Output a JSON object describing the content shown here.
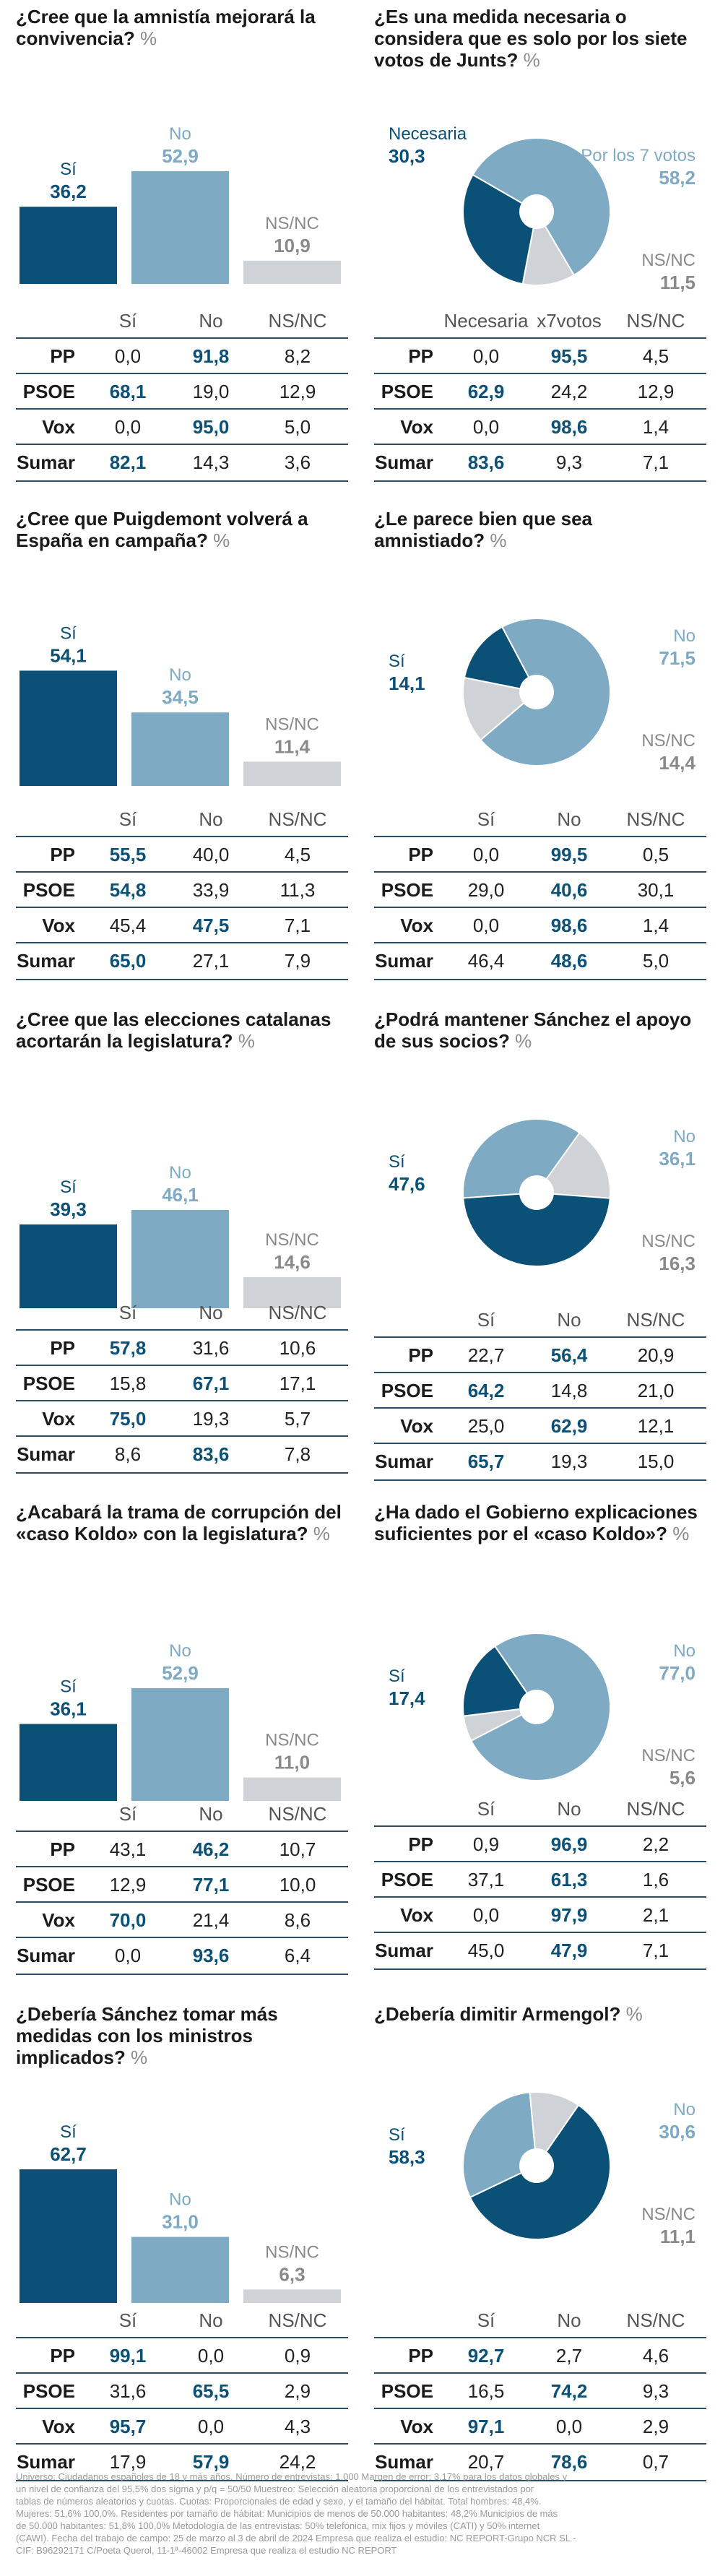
{
  "colors": {
    "dark": "#0b5177",
    "light": "#7eaac4",
    "grey": "#cfd2d7",
    "greyText": "#8a8a8a"
  },
  "sections": [
    {
      "type": "bar",
      "title": "¿Cree que la amnistía mejorará la convivencia?",
      "pct": "%",
      "chart_items": [
        {
          "label": "Sí",
          "value": 36.2,
          "value_text": "36,2"
        },
        {
          "label": "No",
          "value": 52.9,
          "value_text": "52,9"
        },
        {
          "label": "NS/NC",
          "value": 10.9,
          "value_text": "10,9"
        }
      ],
      "table": {
        "headers": [
          "Sí",
          "No",
          "NS/NC"
        ],
        "rows": [
          {
            "party": "PP",
            "cells": [
              "0,0",
              "91,8",
              "8,2"
            ],
            "hi": 1
          },
          {
            "party": "PSOE",
            "cells": [
              "68,1",
              "19,0",
              "12,9"
            ],
            "hi": 0
          },
          {
            "party": "Vox",
            "cells": [
              "0,0",
              "95,0",
              "5,0"
            ],
            "hi": 1
          },
          {
            "party": "Sumar",
            "cells": [
              "82,1",
              "14,3",
              "3,6"
            ],
            "hi": 0
          }
        ]
      }
    },
    {
      "type": "pie",
      "title": "¿Es una medida necesaria o considera que es solo por los siete votos de Junts?",
      "pct": "%",
      "chart_items": [
        {
          "label": "Necesaria",
          "value": 30.3,
          "value_text": "30,3"
        },
        {
          "label": "Por los 7 votos",
          "value": 58.2,
          "value_text": "58,2"
        },
        {
          "label": "NS/NC",
          "value": 11.5,
          "value_text": "11,5"
        }
      ],
      "table": {
        "headers": [
          "Necesaria",
          "x7votos",
          "NS/NC"
        ],
        "rows": [
          {
            "party": "PP",
            "cells": [
              "0,0",
              "95,5",
              "4,5"
            ],
            "hi": 1
          },
          {
            "party": "PSOE",
            "cells": [
              "62,9",
              "24,2",
              "12,9"
            ],
            "hi": 0
          },
          {
            "party": "Vox",
            "cells": [
              "0,0",
              "98,6",
              "1,4"
            ],
            "hi": 1
          },
          {
            "party": "Sumar",
            "cells": [
              "83,6",
              "9,3",
              "7,1"
            ],
            "hi": 0
          }
        ]
      }
    },
    {
      "type": "bar",
      "title": "¿Cree que Puigdemont volverá a España en campaña?",
      "pct": "%",
      "chart_items": [
        {
          "label": "Sí",
          "value": 54.1,
          "value_text": "54,1"
        },
        {
          "label": "No",
          "value": 34.5,
          "value_text": "34,5"
        },
        {
          "label": "NS/NC",
          "value": 11.4,
          "value_text": "11,4"
        }
      ],
      "table": {
        "headers": [
          "Sí",
          "No",
          "NS/NC"
        ],
        "rows": [
          {
            "party": "PP",
            "cells": [
              "55,5",
              "40,0",
              "4,5"
            ],
            "hi": 0
          },
          {
            "party": "PSOE",
            "cells": [
              "54,8",
              "33,9",
              "11,3"
            ],
            "hi": 0
          },
          {
            "party": "Vox",
            "cells": [
              "45,4",
              "47,5",
              "7,1"
            ],
            "hi": 1
          },
          {
            "party": "Sumar",
            "cells": [
              "65,0",
              "27,1",
              "7,9"
            ],
            "hi": 0
          }
        ]
      }
    },
    {
      "type": "pie",
      "title": "¿Le parece bien que sea amnistiado?",
      "pct": "%",
      "chart_items": [
        {
          "label": "Sí",
          "value": 14.1,
          "value_text": "14,1"
        },
        {
          "label": "No",
          "value": 71.5,
          "value_text": "71,5"
        },
        {
          "label": "NS/NC",
          "value": 14.4,
          "value_text": "14,4"
        }
      ],
      "table": {
        "headers": [
          "Sí",
          "No",
          "NS/NC"
        ],
        "rows": [
          {
            "party": "PP",
            "cells": [
              "0,0",
              "99,5",
              "0,5"
            ],
            "hi": 1
          },
          {
            "party": "PSOE",
            "cells": [
              "29,0",
              "40,6",
              "30,1"
            ],
            "hi": 1
          },
          {
            "party": "Vox",
            "cells": [
              "0,0",
              "98,6",
              "1,4"
            ],
            "hi": 1
          },
          {
            "party": "Sumar",
            "cells": [
              "46,4",
              "48,6",
              "5,0"
            ],
            "hi": 1
          }
        ]
      }
    },
    {
      "type": "bar",
      "title": "¿Cree que las elecciones catalanas acortarán la legislatura?",
      "pct": "%",
      "chart_items": [
        {
          "label": "Sí",
          "value": 39.3,
          "value_text": "39,3"
        },
        {
          "label": "No",
          "value": 46.1,
          "value_text": "46,1"
        },
        {
          "label": "NS/NC",
          "value": 14.6,
          "value_text": "14,6"
        }
      ],
      "table": {
        "headers": [
          "Sí",
          "No",
          "NS/NC"
        ],
        "rows": [
          {
            "party": "PP",
            "cells": [
              "57,8",
              "31,6",
              "10,6"
            ],
            "hi": 0
          },
          {
            "party": "PSOE",
            "cells": [
              "15,8",
              "67,1",
              "17,1"
            ],
            "hi": 1
          },
          {
            "party": "Vox",
            "cells": [
              "75,0",
              "19,3",
              "5,7"
            ],
            "hi": 0
          },
          {
            "party": "Sumar",
            "cells": [
              "8,6",
              "83,6",
              "7,8"
            ],
            "hi": 1
          }
        ]
      }
    },
    {
      "type": "pie",
      "title": "¿Podrá mantener Sánchez el apoyo de sus socios?",
      "pct": "%",
      "chart_items": [
        {
          "label": "Sí",
          "value": 47.6,
          "value_text": "47,6"
        },
        {
          "label": "No",
          "value": 36.1,
          "value_text": "36,1"
        },
        {
          "label": "NS/NC",
          "value": 16.3,
          "value_text": "16,3"
        }
      ],
      "table": {
        "headers": [
          "Sí",
          "No",
          "NS/NC"
        ],
        "rows": [
          {
            "party": "PP",
            "cells": [
              "22,7",
              "56,4",
              "20,9"
            ],
            "hi": 1
          },
          {
            "party": "PSOE",
            "cells": [
              "64,2",
              "14,8",
              "21,0"
            ],
            "hi": 0
          },
          {
            "party": "Vox",
            "cells": [
              "25,0",
              "62,9",
              "12,1"
            ],
            "hi": 1
          },
          {
            "party": "Sumar",
            "cells": [
              "65,7",
              "19,3",
              "15,0"
            ],
            "hi": 0
          }
        ]
      }
    },
    {
      "type": "bar",
      "title": "¿Acabará la trama de corrupción del «caso Koldo» con la legislatura?",
      "pct": "%",
      "chart_items": [
        {
          "label": "Sí",
          "value": 36.1,
          "value_text": "36,1"
        },
        {
          "label": "No",
          "value": 52.9,
          "value_text": "52,9"
        },
        {
          "label": "NS/NC",
          "value": 11.0,
          "value_text": "11,0"
        }
      ],
      "table": {
        "headers": [
          "Sí",
          "No",
          "NS/NC"
        ],
        "rows": [
          {
            "party": "PP",
            "cells": [
              "43,1",
              "46,2",
              "10,7"
            ],
            "hi": 1
          },
          {
            "party": "PSOE",
            "cells": [
              "12,9",
              "77,1",
              "10,0"
            ],
            "hi": 1
          },
          {
            "party": "Vox",
            "cells": [
              "70,0",
              "21,4",
              "8,6"
            ],
            "hi": 0
          },
          {
            "party": "Sumar",
            "cells": [
              "0,0",
              "93,6",
              "6,4"
            ],
            "hi": 1
          }
        ]
      }
    },
    {
      "type": "pie",
      "title": "¿Ha dado el Gobierno explicaciones suficientes por el «caso Koldo»?",
      "pct": "%",
      "chart_items": [
        {
          "label": "Sí",
          "value": 17.4,
          "value_text": "17,4"
        },
        {
          "label": "No",
          "value": 77.0,
          "value_text": "77,0"
        },
        {
          "label": "NS/NC",
          "value": 5.6,
          "value_text": "5,6"
        }
      ],
      "table": {
        "headers": [
          "Sí",
          "No",
          "NS/NC"
        ],
        "rows": [
          {
            "party": "PP",
            "cells": [
              "0,9",
              "96,9",
              "2,2"
            ],
            "hi": 1
          },
          {
            "party": "PSOE",
            "cells": [
              "37,1",
              "61,3",
              "1,6"
            ],
            "hi": 1
          },
          {
            "party": "Vox",
            "cells": [
              "0,0",
              "97,9",
              "2,1"
            ],
            "hi": 1
          },
          {
            "party": "Sumar",
            "cells": [
              "45,0",
              "47,9",
              "7,1"
            ],
            "hi": 1
          }
        ]
      }
    },
    {
      "type": "bar",
      "title": "¿Debería Sánchez tomar más medidas con los ministros implicados?",
      "pct": "%",
      "chart_items": [
        {
          "label": "Sí",
          "value": 62.7,
          "value_text": "62,7"
        },
        {
          "label": "No",
          "value": 31.0,
          "value_text": "31,0"
        },
        {
          "label": "NS/NC",
          "value": 6.3,
          "value_text": "6,3"
        }
      ],
      "table": {
        "headers": [
          "Sí",
          "No",
          "NS/NC"
        ],
        "rows": [
          {
            "party": "PP",
            "cells": [
              "99,1",
              "0,0",
              "0,9"
            ],
            "hi": 0
          },
          {
            "party": "PSOE",
            "cells": [
              "31,6",
              "65,5",
              "2,9"
            ],
            "hi": 1
          },
          {
            "party": "Vox",
            "cells": [
              "95,7",
              "0,0",
              "4,3"
            ],
            "hi": 0
          },
          {
            "party": "Sumar",
            "cells": [
              "17,9",
              "57,9",
              "24,2"
            ],
            "hi": 1
          }
        ]
      }
    },
    {
      "type": "pie",
      "title": "¿Debería dimitir Armengol?",
      "pct": "%",
      "chart_items": [
        {
          "label": "Sí",
          "value": 58.3,
          "value_text": "58,3"
        },
        {
          "label": "No",
          "value": 30.6,
          "value_text": "30,6"
        },
        {
          "label": "NS/NC",
          "value": 11.1,
          "value_text": "11,1"
        }
      ],
      "table": {
        "headers": [
          "Sí",
          "No",
          "NS/NC"
        ],
        "rows": [
          {
            "party": "PP",
            "cells": [
              "92,7",
              "2,7",
              "4,6"
            ],
            "hi": 0
          },
          {
            "party": "PSOE",
            "cells": [
              "16,5",
              "74,2",
              "9,3"
            ],
            "hi": 1
          },
          {
            "party": "Vox",
            "cells": [
              "97,1",
              "0,0",
              "2,9"
            ],
            "hi": 0
          },
          {
            "party": "Sumar",
            "cells": [
              "20,7",
              "78,6",
              "0,7"
            ],
            "hi": 1
          }
        ]
      }
    }
  ],
  "footer": [
    "Universo: Ciudadanos españoles de 18 y más años. Número de entrevistas: 1.000 Margen de error: 3,17% para los datos globales y",
    "un nivel de confianza del 95,5% dos sigma y p/q = 50/50 Muestreo: Selección aleatoria proporcional de los entrevistados por",
    "tablas de números aleatorios y cuotas. Cuotas: Proporcionales de edad y sexo, y el tamaño del hábitat. Total hombres: 48,4%.",
    "Mujeres: 51,6% 100,0%. Residentes por tamaño de hábitat: Municipios de menos de 50.000 habitantes: 48,2% Municipios de más",
    "de 50.000 habitantes: 51,8% 100,0% Metodología de las entrevistas: 50% telefónica, mix fijos y móviles (CATI) y 50% internet",
    "(CAWI). Fecha del trabajo de campo: 25 de marzo al 3 de abril de 2024 Empresa que realiza el estudio: NC REPORT-Grupo NCR SL -",
    "CIF: B96292171 C/Poeta Querol, 11-1ª-46002 Empresa que realiza el estudio NC REPORT"
  ],
  "chart_data": [
    {
      "type": "bar",
      "title": "¿Cree que la amnistía mejorará la convivencia?",
      "categories": [
        "Sí",
        "No",
        "NS/NC"
      ],
      "values": [
        36.2,
        52.9,
        10.9
      ]
    },
    {
      "type": "pie",
      "title": "¿Es una medida necesaria o considera que es solo por los siete votos de Junts?",
      "categories": [
        "Necesaria",
        "Por los 7 votos",
        "NS/NC"
      ],
      "values": [
        30.3,
        58.2,
        11.5
      ]
    },
    {
      "type": "bar",
      "title": "¿Cree que Puigdemont volverá a España en campaña?",
      "categories": [
        "Sí",
        "No",
        "NS/NC"
      ],
      "values": [
        54.1,
        34.5,
        11.4
      ]
    },
    {
      "type": "pie",
      "title": "¿Le parece bien que sea amnistiado?",
      "categories": [
        "Sí",
        "No",
        "NS/NC"
      ],
      "values": [
        14.1,
        71.5,
        14.4
      ]
    },
    {
      "type": "bar",
      "title": "¿Cree que las elecciones catalanas acortarán la legislatura?",
      "categories": [
        "Sí",
        "No",
        "NS/NC"
      ],
      "values": [
        39.3,
        46.1,
        14.6
      ]
    },
    {
      "type": "pie",
      "title": "¿Podrá mantener Sánchez el apoyo de sus socios?",
      "categories": [
        "Sí",
        "No",
        "NS/NC"
      ],
      "values": [
        47.6,
        36.1,
        16.3
      ]
    },
    {
      "type": "bar",
      "title": "¿Acabará la trama de corrupción del «caso Koldo» con la legislatura?",
      "categories": [
        "Sí",
        "No",
        "NS/NC"
      ],
      "values": [
        36.1,
        52.9,
        11.0
      ]
    },
    {
      "type": "pie",
      "title": "¿Ha dado el Gobierno explicaciones suficientes por el «caso Koldo»?",
      "categories": [
        "Sí",
        "No",
        "NS/NC"
      ],
      "values": [
        17.4,
        77.0,
        5.6
      ]
    },
    {
      "type": "bar",
      "title": "¿Debería Sánchez tomar más medidas con los ministros implicados?",
      "categories": [
        "Sí",
        "No",
        "NS/NC"
      ],
      "values": [
        62.7,
        31.0,
        6.3
      ]
    },
    {
      "type": "pie",
      "title": "¿Debería dimitir Armengol?",
      "categories": [
        "Sí",
        "No",
        "NS/NC"
      ],
      "values": [
        58.3,
        30.6,
        11.1
      ]
    }
  ]
}
